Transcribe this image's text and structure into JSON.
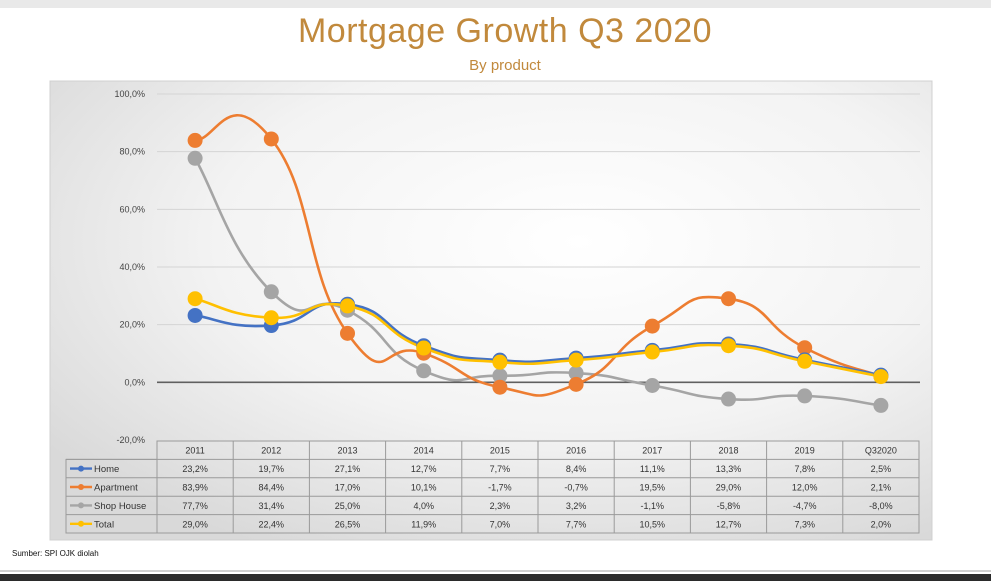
{
  "chart_data": {
    "type": "line",
    "title": "Mortgage Growth Q3 2020",
    "subtitle": "By product",
    "source": "Sumber: SPI OJK diolah",
    "categories": [
      "2011",
      "2012",
      "2013",
      "2014",
      "2015",
      "2016",
      "2017",
      "2018",
      "2019",
      "Q32020"
    ],
    "ylim": [
      -20,
      100
    ],
    "yticks": [
      -20,
      0,
      20,
      40,
      60,
      80,
      100
    ],
    "ytick_labels": [
      "-20,0%",
      "0,0%",
      "20,0%",
      "40,0%",
      "60,0%",
      "80,0%",
      "100,0%"
    ],
    "smooth": true,
    "data_table": true,
    "series": [
      {
        "name": "Home",
        "color": "#4472c4",
        "values": [
          23.2,
          19.7,
          27.1,
          12.7,
          7.7,
          8.4,
          11.1,
          13.3,
          7.8,
          2.5
        ],
        "labels": [
          "23,2%",
          "19,7%",
          "27,1%",
          "12,7%",
          "7,7%",
          "8,4%",
          "11,1%",
          "13,3%",
          "7,8%",
          "2,5%"
        ]
      },
      {
        "name": "Apartment",
        "color": "#ed7d31",
        "values": [
          83.9,
          84.4,
          17.0,
          10.1,
          -1.7,
          -0.7,
          19.5,
          29.0,
          12.0,
          2.1
        ],
        "labels": [
          "83,9%",
          "84,4%",
          "17,0%",
          "10,1%",
          "-1,7%",
          "-0,7%",
          "19,5%",
          "29,0%",
          "12,0%",
          "2,1%"
        ]
      },
      {
        "name": "Shop House",
        "color": "#a5a5a5",
        "values": [
          77.7,
          31.4,
          25.0,
          4.0,
          2.3,
          3.2,
          -1.1,
          -5.8,
          -4.7,
          -8.0
        ],
        "labels": [
          "77,7%",
          "31,4%",
          "25,0%",
          "4,0%",
          "2,3%",
          "3,2%",
          "-1,1%",
          "-5,8%",
          "-4,7%",
          "-8,0%"
        ]
      },
      {
        "name": "Total",
        "color": "#ffc000",
        "values": [
          29.0,
          22.4,
          26.5,
          11.9,
          7.0,
          7.7,
          10.5,
          12.7,
          7.3,
          2.0
        ],
        "labels": [
          "29,0%",
          "22,4%",
          "26,5%",
          "11,9%",
          "7,0%",
          "7,7%",
          "10,5%",
          "12,7%",
          "7,3%",
          "2,0%"
        ]
      }
    ]
  }
}
